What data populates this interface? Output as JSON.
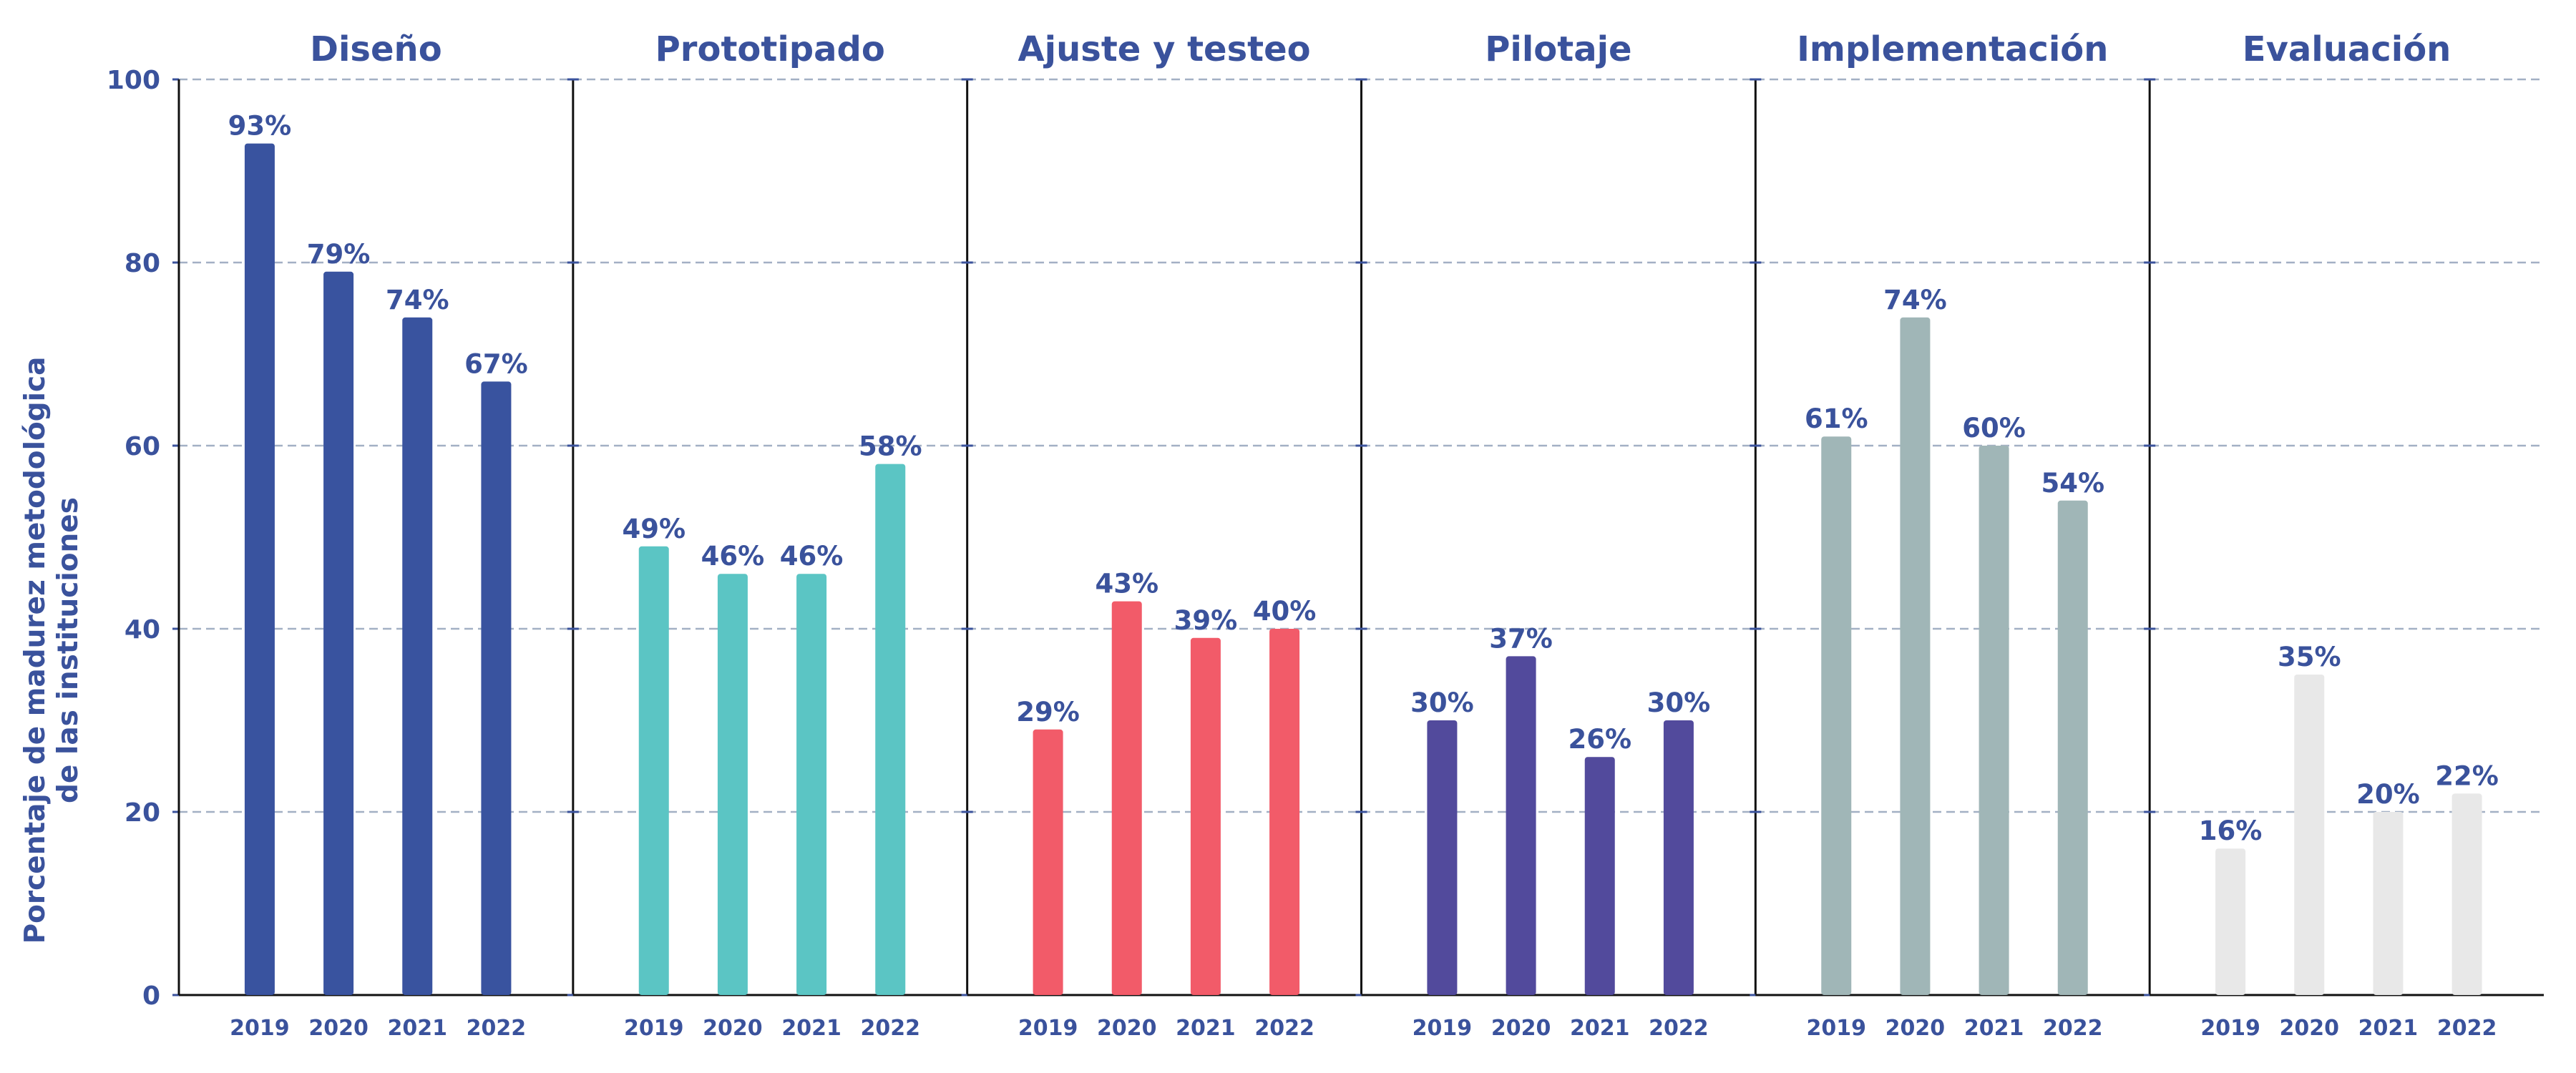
{
  "chart_data": {
    "type": "bar",
    "ylabel_lines": [
      "Porcentaje de madurez metodológica",
      "de las instituciones"
    ],
    "ylim": [
      0,
      100
    ],
    "yticks": [
      "0",
      "20",
      "40",
      "60",
      "80",
      "100"
    ],
    "grid": true,
    "categories": [
      "2019",
      "2020",
      "2021",
      "2022"
    ],
    "panels": [
      {
        "title": "Diseño",
        "color": "#39539f",
        "values": [
          93,
          79,
          74,
          67
        ],
        "labels": [
          "93%",
          "79%",
          "74%",
          "67%"
        ]
      },
      {
        "title": "Prototipado",
        "color": "#5bc5c4",
        "values": [
          49,
          46,
          46,
          58
        ],
        "labels": [
          "49%",
          "46%",
          "46%",
          "58%"
        ]
      },
      {
        "title": "Ajuste y testeo",
        "color": "#f25b69",
        "values": [
          29,
          43,
          39,
          40
        ],
        "labels": [
          "29%",
          "43%",
          "39%",
          "40%"
        ]
      },
      {
        "title": "Pilotaje",
        "color": "#524a9c",
        "values": [
          30,
          37,
          26,
          30
        ],
        "labels": [
          "30%",
          "37%",
          "26%",
          "30%"
        ]
      },
      {
        "title": "Implementación",
        "color": "#a0b6b7",
        "values": [
          61,
          74,
          60,
          54
        ],
        "labels": [
          "61%",
          "74%",
          "60%",
          "54%"
        ]
      },
      {
        "title": "Evaluación",
        "color": "#e8e8e8",
        "values": [
          16,
          35,
          20,
          22
        ],
        "labels": [
          "16%",
          "35%",
          "20%",
          "22%"
        ]
      }
    ]
  },
  "colors": {
    "text": "#3a529c",
    "axis": "#111111",
    "grid": "#a3b0c4"
  }
}
